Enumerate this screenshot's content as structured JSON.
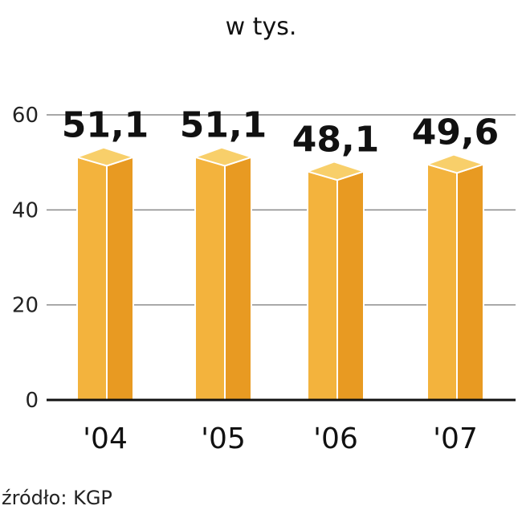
{
  "chart_data": {
    "type": "bar",
    "subtitle": "w tys.",
    "categories": [
      "'04",
      "'05",
      "'06",
      "'07"
    ],
    "values": [
      51.1,
      51.1,
      48.1,
      49.6
    ],
    "value_labels": [
      "51,1",
      "51,1",
      "48,1",
      "49,6"
    ],
    "yticks": [
      0,
      20,
      40,
      60
    ],
    "ylim": [
      0,
      60
    ],
    "grid": true,
    "source": "źródło: KGP",
    "colors": {
      "bar_front": "#F3B33D",
      "bar_side": "#E89A22",
      "bar_top": "#F8CF6A",
      "bar_edge": "#FFFFFF",
      "gridline": "#8A8A8A",
      "baseline": "#111111"
    }
  }
}
